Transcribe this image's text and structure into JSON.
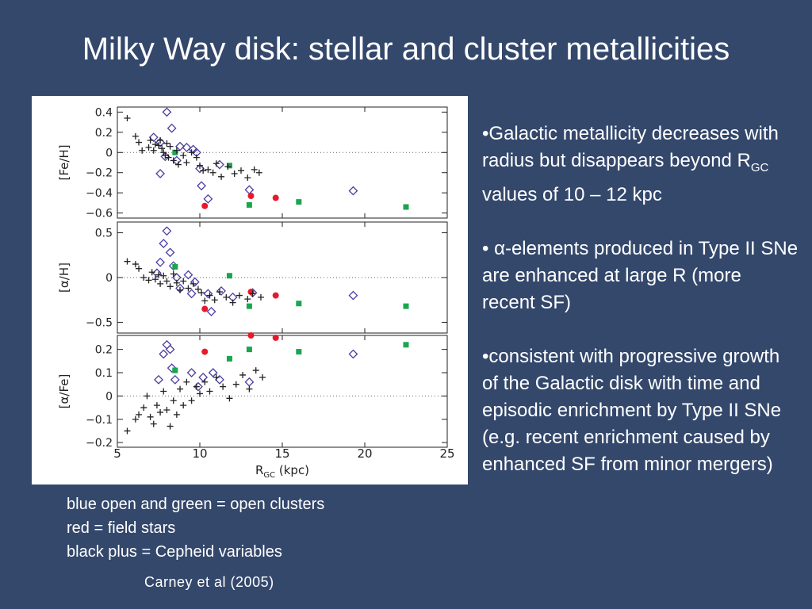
{
  "slide": {
    "title": "Milky Way disk: stellar and cluster metallicities",
    "bullets": [
      {
        "text": "•Galactic metallicity decreases with radius but disappears beyond R",
        "sub": "GC",
        "tail": " values of 10 – 12 kpc"
      },
      {
        "text": "• α-elements produced in Type II SNe are enhanced at large R (more recent SF)"
      },
      {
        "text": "•consistent with progressive growth of the Galactic disk with time and episodic enrichment by Type II SNe (e.g. recent enrichment caused by enhanced SF from minor mergers)"
      }
    ],
    "legend_lines": [
      "blue open and green = open clusters",
      "red = field stars",
      "black plus = Cepheid variables"
    ],
    "credit": "Carney et al (2005)"
  },
  "chart_data": {
    "type": "scatter",
    "xlabel": {
      "main": "R",
      "sub": "GC",
      "unit": " (kpc)"
    },
    "x_ticks": [
      "5",
      "10",
      "15",
      "20",
      "25"
    ],
    "xlim": [
      5,
      25
    ],
    "colors": {
      "blue_open": "#4a3fa0",
      "green": "#1aa64e",
      "red": "#e8192c",
      "black_plus": "#222222"
    },
    "panels": [
      {
        "ylabel": "[Fe/H]",
        "ylim": [
          -0.65,
          0.45
        ],
        "yticks": [
          0.4,
          0.2,
          0,
          -0.2,
          -0.4,
          -0.6
        ],
        "ytick_labels": [
          "0.4",
          "0.2",
          "0",
          "−0.2",
          "−0.4",
          "−0.6"
        ],
        "zero_line": true,
        "series": [
          {
            "marker": "diamond",
            "color": "blue_open",
            "points": [
              [
                8.0,
                0.4
              ],
              [
                8.3,
                0.24
              ],
              [
                7.2,
                0.15
              ],
              [
                7.6,
                0.1
              ],
              [
                8.8,
                0.06
              ],
              [
                9.2,
                0.05
              ],
              [
                9.6,
                0.03
              ],
              [
                7.9,
                -0.04
              ],
              [
                8.6,
                -0.08
              ],
              [
                9.8,
                0.0
              ],
              [
                7.6,
                -0.21
              ],
              [
                10.0,
                -0.16
              ],
              [
                11.2,
                -0.12
              ],
              [
                10.1,
                -0.33
              ],
              [
                10.5,
                -0.46
              ],
              [
                13.0,
                -0.37
              ],
              [
                19.3,
                -0.38
              ]
            ]
          },
          {
            "marker": "square",
            "color": "green",
            "points": [
              [
                8.5,
                0.0
              ],
              [
                11.8,
                -0.13
              ],
              [
                13.0,
                -0.52
              ],
              [
                16.0,
                -0.49
              ],
              [
                22.5,
                -0.54
              ]
            ]
          },
          {
            "marker": "circle",
            "color": "red",
            "points": [
              [
                10.3,
                -0.53
              ],
              [
                13.1,
                -0.43
              ],
              [
                14.6,
                -0.45
              ]
            ]
          },
          {
            "marker": "plus",
            "color": "black_plus",
            "points": [
              [
                5.6,
                0.34
              ],
              [
                6.1,
                0.16
              ],
              [
                6.3,
                0.1
              ],
              [
                6.5,
                0.02
              ],
              [
                6.9,
                0.05
              ],
              [
                7.0,
                0.12
              ],
              [
                7.2,
                0.02
              ],
              [
                7.3,
                0.08
              ],
              [
                7.5,
                0.07
              ],
              [
                7.6,
                0.12
              ],
              [
                7.7,
                0.04
              ],
              [
                7.8,
                0.0
              ],
              [
                7.9,
                -0.03
              ],
              [
                8.0,
                0.09
              ],
              [
                8.1,
                -0.05
              ],
              [
                8.2,
                0.06
              ],
              [
                8.4,
                -0.08
              ],
              [
                8.6,
                0.02
              ],
              [
                8.7,
                -0.12
              ],
              [
                9.0,
                -0.03
              ],
              [
                9.2,
                -0.1
              ],
              [
                9.5,
                0.0
              ],
              [
                9.8,
                -0.05
              ],
              [
                10.0,
                -0.13
              ],
              [
                10.2,
                -0.18
              ],
              [
                10.5,
                -0.17
              ],
              [
                10.8,
                -0.2
              ],
              [
                11.0,
                -0.11
              ],
              [
                11.3,
                -0.24
              ],
              [
                11.7,
                -0.14
              ],
              [
                12.1,
                -0.21
              ],
              [
                12.5,
                -0.18
              ],
              [
                12.9,
                -0.25
              ],
              [
                13.3,
                -0.17
              ],
              [
                13.6,
                -0.2
              ]
            ]
          }
        ]
      },
      {
        "ylabel": "[α/H]",
        "ylim": [
          -0.62,
          0.62
        ],
        "yticks": [
          0.5,
          0,
          -0.5
        ],
        "ytick_labels": [
          "0.5",
          "0",
          "−0.5"
        ],
        "zero_line": true,
        "series": [
          {
            "marker": "diamond",
            "color": "blue_open",
            "points": [
              [
                8.0,
                0.52
              ],
              [
                7.8,
                0.38
              ],
              [
                8.2,
                0.28
              ],
              [
                7.6,
                0.17
              ],
              [
                8.4,
                0.13
              ],
              [
                7.4,
                0.05
              ],
              [
                8.6,
                0.0
              ],
              [
                9.3,
                0.03
              ],
              [
                9.7,
                -0.05
              ],
              [
                8.8,
                -0.12
              ],
              [
                9.5,
                -0.18
              ],
              [
                10.5,
                -0.18
              ],
              [
                11.3,
                -0.15
              ],
              [
                10.7,
                -0.38
              ],
              [
                12.0,
                -0.22
              ],
              [
                13.2,
                -0.17
              ],
              [
                19.3,
                -0.2
              ]
            ]
          },
          {
            "marker": "square",
            "color": "green",
            "points": [
              [
                8.5,
                0.12
              ],
              [
                11.8,
                0.02
              ],
              [
                13.0,
                -0.32
              ],
              [
                16.0,
                -0.29
              ],
              [
                22.5,
                -0.32
              ]
            ]
          },
          {
            "marker": "circle",
            "color": "red",
            "points": [
              [
                10.3,
                -0.35
              ],
              [
                13.1,
                -0.16
              ],
              [
                14.6,
                -0.2
              ]
            ]
          },
          {
            "marker": "plus",
            "color": "black_plus",
            "points": [
              [
                5.6,
                0.18
              ],
              [
                6.1,
                0.15
              ],
              [
                6.3,
                0.1
              ],
              [
                6.6,
                0.0
              ],
              [
                6.9,
                -0.03
              ],
              [
                7.1,
                0.06
              ],
              [
                7.3,
                -0.02
              ],
              [
                7.5,
                0.03
              ],
              [
                7.6,
                -0.07
              ],
              [
                7.8,
                0.02
              ],
              [
                8.0,
                -0.04
              ],
              [
                8.2,
                -0.1
              ],
              [
                8.4,
                0.04
              ],
              [
                8.6,
                -0.06
              ],
              [
                8.8,
                -0.14
              ],
              [
                9.0,
                -0.04
              ],
              [
                9.3,
                -0.12
              ],
              [
                9.6,
                -0.07
              ],
              [
                9.9,
                -0.13
              ],
              [
                10.1,
                -0.17
              ],
              [
                10.3,
                -0.26
              ],
              [
                10.6,
                -0.2
              ],
              [
                10.9,
                -0.25
              ],
              [
                11.2,
                -0.16
              ],
              [
                11.6,
                -0.22
              ],
              [
                12.0,
                -0.28
              ],
              [
                12.4,
                -0.2
              ],
              [
                12.9,
                -0.24
              ],
              [
                13.2,
                -0.18
              ],
              [
                13.7,
                -0.22
              ]
            ]
          }
        ]
      },
      {
        "ylabel": "[α/Fe]",
        "ylim": [
          -0.22,
          0.26
        ],
        "yticks": [
          0.2,
          0.1,
          0,
          -0.1,
          -0.2
        ],
        "ytick_labels": [
          "0.2",
          "0.1",
          "0",
          "−0.1",
          "−0.2"
        ],
        "zero_line": true,
        "series": [
          {
            "marker": "diamond",
            "color": "blue_open",
            "points": [
              [
                8.0,
                0.22
              ],
              [
                8.2,
                0.2
              ],
              [
                7.8,
                0.18
              ],
              [
                8.3,
                0.12
              ],
              [
                7.5,
                0.07
              ],
              [
                8.5,
                0.07
              ],
              [
                9.5,
                0.1
              ],
              [
                10.2,
                0.08
              ],
              [
                10.8,
                0.1
              ],
              [
                9.9,
                0.04
              ],
              [
                11.2,
                0.07
              ],
              [
                13.0,
                0.06
              ],
              [
                19.3,
                0.18
              ]
            ]
          },
          {
            "marker": "square",
            "color": "green",
            "points": [
              [
                8.5,
                0.11
              ],
              [
                11.8,
                0.16
              ],
              [
                13.0,
                0.2
              ],
              [
                16.0,
                0.19
              ],
              [
                22.5,
                0.22
              ]
            ]
          },
          {
            "marker": "circle",
            "color": "red",
            "points": [
              [
                10.3,
                0.19
              ],
              [
                13.1,
                0.26
              ],
              [
                14.6,
                0.25
              ]
            ]
          },
          {
            "marker": "plus",
            "color": "black_plus",
            "points": [
              [
                5.6,
                -0.15
              ],
              [
                6.1,
                -0.1
              ],
              [
                6.3,
                -0.08
              ],
              [
                6.6,
                -0.05
              ],
              [
                6.8,
                0.0
              ],
              [
                7.0,
                -0.09
              ],
              [
                7.2,
                -0.12
              ],
              [
                7.4,
                -0.04
              ],
              [
                7.6,
                -0.07
              ],
              [
                7.8,
                0.02
              ],
              [
                8.0,
                -0.06
              ],
              [
                8.2,
                -0.13
              ],
              [
                8.4,
                -0.02
              ],
              [
                8.6,
                -0.08
              ],
              [
                8.8,
                0.03
              ],
              [
                9.0,
                -0.04
              ],
              [
                9.2,
                0.06
              ],
              [
                9.5,
                -0.02
              ],
              [
                9.8,
                0.04
              ],
              [
                10.0,
                0.01
              ],
              [
                10.3,
                0.06
              ],
              [
                10.6,
                0.02
              ],
              [
                11.0,
                0.08
              ],
              [
                11.4,
                0.04
              ],
              [
                11.8,
                -0.01
              ],
              [
                12.2,
                0.05
              ],
              [
                12.6,
                0.09
              ],
              [
                13.0,
                0.03
              ],
              [
                13.4,
                0.11
              ],
              [
                13.8,
                0.08
              ]
            ]
          }
        ]
      }
    ]
  }
}
